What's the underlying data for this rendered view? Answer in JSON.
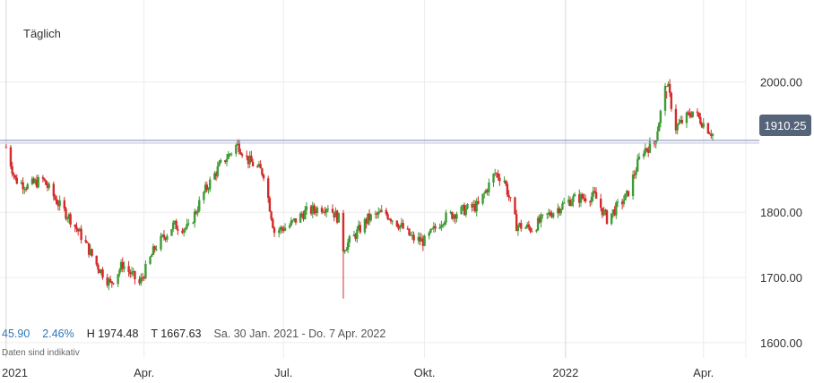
{
  "chart_data": {
    "type": "candlestick",
    "period_label": "Täglich",
    "ylim": [
      1560,
      2090
    ],
    "y_ticks": [
      {
        "value": 2000,
        "label": "2000.00"
      },
      {
        "value": 1800,
        "label": "1800.00"
      },
      {
        "value": 1700,
        "label": "1700.00"
      },
      {
        "value": 1600,
        "label": "1600.00"
      }
    ],
    "x_ticks": [
      {
        "value": "2021-01-01",
        "label": "2021"
      },
      {
        "value": "2021-04-01",
        "label": "Apr."
      },
      {
        "value": "2021-07-01",
        "label": "Jul."
      },
      {
        "value": "2021-10-01",
        "label": "Okt."
      },
      {
        "value": "2022-01-01",
        "label": "2022"
      },
      {
        "value": "2022-04-01",
        "label": "Apr."
      }
    ],
    "x_range": [
      "2020-12-28",
      "2022-04-07"
    ],
    "last_price": {
      "value": 1910.25,
      "label": "1910.25"
    },
    "up_color": "#3e9b35",
    "down_color": "#d42a2a",
    "path_dates": [
      "2021-01-01",
      "2021-01-07",
      "2021-01-15",
      "2021-01-25",
      "2021-02-05",
      "2021-02-12",
      "2021-02-20",
      "2021-03-01",
      "2021-03-10",
      "2021-03-18",
      "2021-03-29",
      "2021-04-08",
      "2021-04-20",
      "2021-04-30",
      "2021-05-10",
      "2021-05-20",
      "2021-06-01",
      "2021-06-08",
      "2021-06-18",
      "2021-06-25",
      "2021-07-05",
      "2021-07-15",
      "2021-07-30",
      "2021-08-06",
      "2021-08-09",
      "2021-08-15",
      "2021-08-25",
      "2021-09-05",
      "2021-09-15",
      "2021-09-23",
      "2021-10-01",
      "2021-10-13",
      "2021-10-22",
      "2021-11-05",
      "2021-11-16",
      "2021-11-22",
      "2021-11-30",
      "2021-12-10",
      "2021-12-20",
      "2022-01-05",
      "2022-01-20",
      "2022-01-28",
      "2022-02-10",
      "2022-02-20",
      "2022-02-28",
      "2022-03-08",
      "2022-03-14",
      "2022-03-25",
      "2022-04-07"
    ],
    "path_values": [
      1900,
      1850,
      1840,
      1850,
      1810,
      1790,
      1760,
      1720,
      1690,
      1720,
      1690,
      1745,
      1780,
      1775,
      1830,
      1870,
      1905,
      1880,
      1860,
      1770,
      1780,
      1800,
      1810,
      1790,
      1745,
      1760,
      1790,
      1800,
      1780,
      1760,
      1755,
      1790,
      1800,
      1810,
      1860,
      1850,
      1780,
      1775,
      1795,
      1820,
      1825,
      1790,
      1825,
      1895,
      1905,
      2000,
      1930,
      1955,
      1920
    ],
    "high": {
      "label": "H",
      "value": "1974.48"
    },
    "low": {
      "label": "T",
      "value": "1667.63"
    }
  },
  "stats": {
    "change": "45.90",
    "change_pct": "2.46%",
    "high_text": "H 1974.48",
    "low_text": "T 1667.63",
    "date_range": "Sa. 30 Jan. 2021 - Do. 7 Apr. 2022"
  },
  "disclaimer": "Daten sind indikativ"
}
